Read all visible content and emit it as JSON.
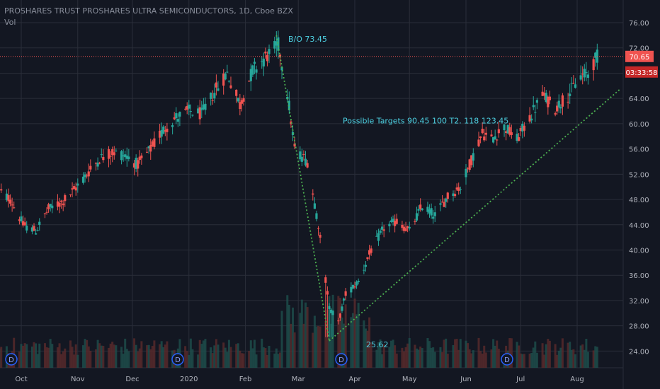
{
  "header": {
    "title": "PROSHARES TRUST PROSHARES ULTRA SEMICONDUCTORS, 1D, Cboe BZX",
    "volume_label": "Vol"
  },
  "price_tag": "70.65",
  "countdown_tag": "03:33:58",
  "colors": {
    "background": "#131722",
    "grid": "#2a2e39",
    "up": "#26a69a",
    "down": "#ef5350",
    "trendline": "#4caf50",
    "annotation": "#4dd0e1",
    "price_line": "#ef5350"
  },
  "annotations": {
    "breakout": "B/O 73.45",
    "targets": "Possible Targets 90.45  100  T2. 118  123.45",
    "low": "25.62"
  },
  "event_markers": [
    "D",
    "D",
    "D",
    "D"
  ],
  "chart_data": {
    "type": "candlestick",
    "title": "PROSHARES TRUST PROSHARES ULTRA SEMICONDUCTORS, 1D, Cboe BZX",
    "y_ticks": [
      "24.00",
      "28.00",
      "32.00",
      "36.00",
      "40.00",
      "44.00",
      "48.00",
      "52.00",
      "56.00",
      "60.00",
      "64.00",
      "68.00",
      "72.00",
      "76.00"
    ],
    "ylim": [
      22.4,
      77.7
    ],
    "x_ticks": [
      "Oct",
      "Nov",
      "Dec",
      "2020",
      "Feb",
      "Mar",
      "Apr",
      "May",
      "Jun",
      "Jul",
      "Aug"
    ],
    "current_price": 70.65,
    "breakout_level": 73.45,
    "key_low": 25.62,
    "targets": [
      90.45,
      100,
      118,
      123.45
    ],
    "anchors": [
      [
        "2019-09-18",
        49.5
      ],
      [
        "2019-09-25",
        48.0
      ],
      [
        "2019-10-02",
        44.0
      ],
      [
        "2019-10-09",
        43.0
      ],
      [
        "2019-10-16",
        46.5
      ],
      [
        "2019-10-23",
        47.5
      ],
      [
        "2019-10-30",
        49.5
      ],
      [
        "2019-11-06",
        52.0
      ],
      [
        "2019-11-13",
        54.5
      ],
      [
        "2019-11-20",
        55.5
      ],
      [
        "2019-11-27",
        55.0
      ],
      [
        "2019-12-04",
        53.5
      ],
      [
        "2019-12-11",
        56.0
      ],
      [
        "2019-12-18",
        59.0
      ],
      [
        "2019-12-25",
        61.0
      ],
      [
        "2020-01-01",
        62.0
      ],
      [
        "2020-01-08",
        61.5
      ],
      [
        "2020-01-15",
        65.0
      ],
      [
        "2020-01-22",
        68.0
      ],
      [
        "2020-01-29",
        63.0
      ],
      [
        "2020-02-05",
        68.5
      ],
      [
        "2020-02-12",
        70.5
      ],
      [
        "2020-02-19",
        72.5
      ],
      [
        "2020-02-24",
        65.0
      ],
      [
        "2020-02-28",
        56.0
      ],
      [
        "2020-03-06",
        54.0
      ],
      [
        "2020-03-12",
        44.0
      ],
      [
        "2020-03-18",
        31.0
      ],
      [
        "2020-03-23",
        28.5
      ],
      [
        "2020-03-27",
        33.0
      ],
      [
        "2020-04-03",
        35.0
      ],
      [
        "2020-04-10",
        40.0
      ],
      [
        "2020-04-17",
        43.5
      ],
      [
        "2020-04-24",
        44.5
      ],
      [
        "2020-05-01",
        43.0
      ],
      [
        "2020-05-08",
        47.0
      ],
      [
        "2020-05-15",
        45.5
      ],
      [
        "2020-05-22",
        48.5
      ],
      [
        "2020-05-29",
        50.0
      ],
      [
        "2020-06-05",
        55.0
      ],
      [
        "2020-06-10",
        58.5
      ],
      [
        "2020-06-15",
        57.5
      ],
      [
        "2020-06-22",
        59.5
      ],
      [
        "2020-06-29",
        57.5
      ],
      [
        "2020-07-06",
        61.0
      ],
      [
        "2020-07-13",
        64.5
      ],
      [
        "2020-07-20",
        62.5
      ],
      [
        "2020-07-27",
        64.5
      ],
      [
        "2020-08-03",
        67.5
      ],
      [
        "2020-08-07",
        68.0
      ],
      [
        "2020-08-12",
        70.65
      ]
    ]
  }
}
